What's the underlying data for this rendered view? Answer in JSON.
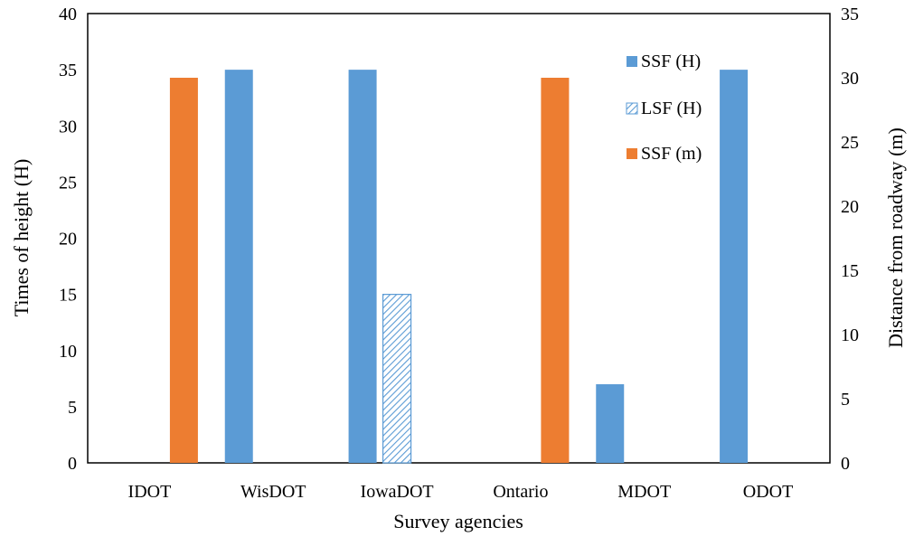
{
  "chart_data": {
    "type": "bar",
    "xlabel": "Survey agencies",
    "ylabel": "Times of height (H)",
    "y2label": "Distance from roadway (m)",
    "ylim": [
      0,
      40
    ],
    "y2lim": [
      0,
      35
    ],
    "yticks": [
      "0",
      "5",
      "10",
      "15",
      "20",
      "25",
      "30",
      "35",
      "40"
    ],
    "y2ticks": [
      "0",
      "5",
      "10",
      "15",
      "20",
      "25",
      "30",
      "35"
    ],
    "categories": [
      "IDOT",
      "WisDOT",
      "IowaDOT",
      "Ontario",
      "MDOT",
      "ODOT"
    ],
    "grid": false,
    "legend_position": "top-right, inside plot",
    "series": [
      {
        "name": "SSF (H)",
        "axis": "left",
        "color": "#5B9BD5",
        "pattern": "solid",
        "values": [
          null,
          35,
          35,
          null,
          7,
          35
        ]
      },
      {
        "name": "LSF (H)",
        "axis": "left",
        "color": "#5B9BD5",
        "pattern": "hatch",
        "values": [
          null,
          null,
          15,
          null,
          null,
          null
        ]
      },
      {
        "name": "SSF (m)",
        "axis": "right",
        "color": "#ED7D31",
        "pattern": "solid",
        "values": [
          30,
          null,
          null,
          30,
          null,
          null
        ]
      }
    ]
  }
}
